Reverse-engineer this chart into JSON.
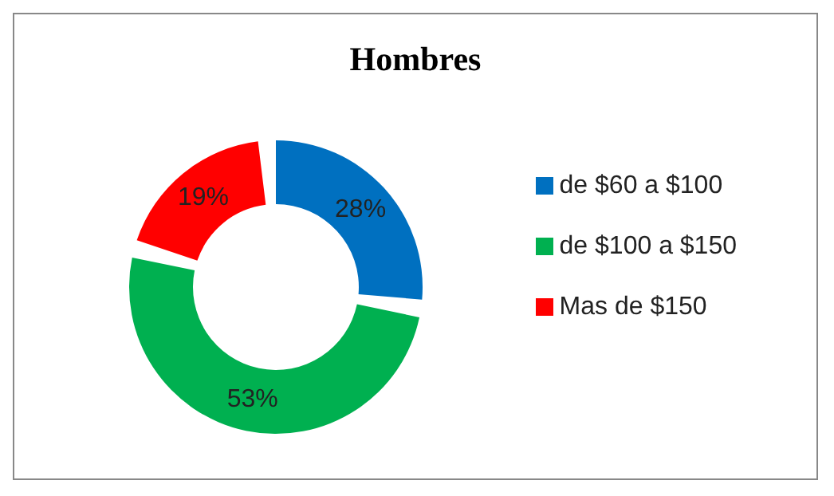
{
  "chart_data": {
    "type": "donut",
    "title": "Hombres",
    "categories": [
      "de $60 a $100",
      "de $100 a $150",
      "Mas de $150"
    ],
    "values": [
      28,
      53,
      19
    ],
    "value_labels": [
      "28%",
      "53%",
      "19%"
    ],
    "colors": [
      "#0070c0",
      "#00b050",
      "#ff0000"
    ],
    "legend": "right"
  }
}
